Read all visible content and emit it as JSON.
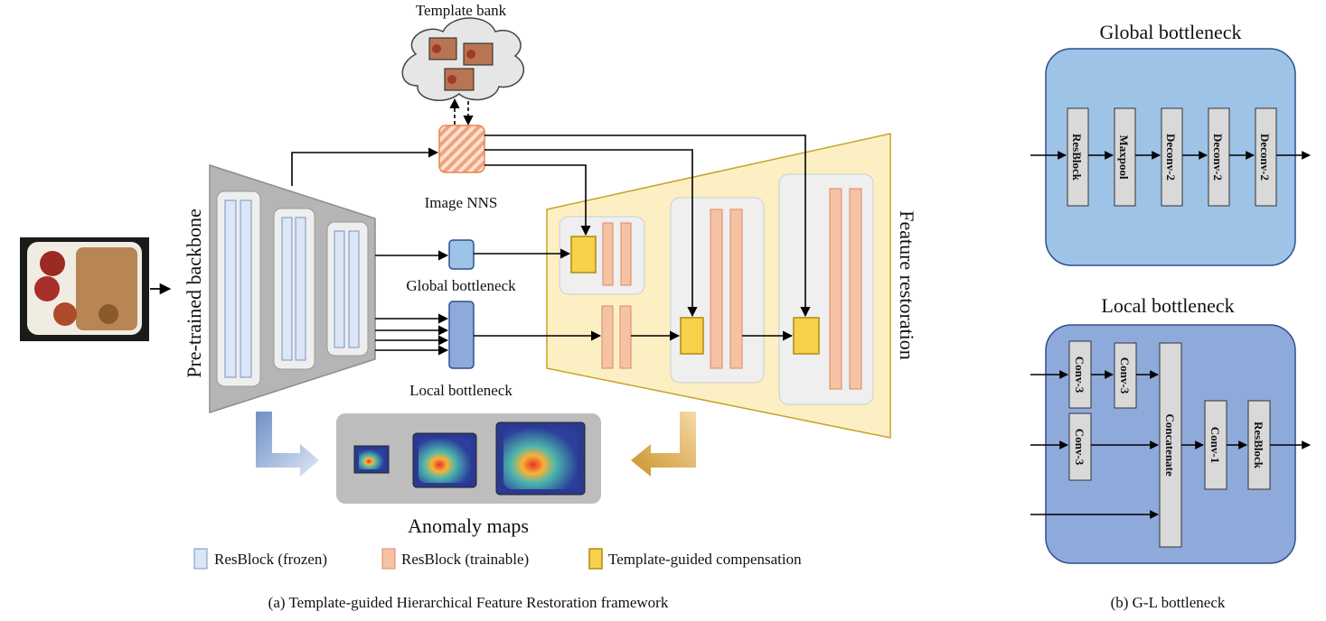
{
  "panel_a": {
    "template_bank": "Template bank",
    "image_nns": "Image NNS",
    "backbone": "Pre-trained backbone",
    "global_bottleneck": "Global bottleneck",
    "local_bottleneck": "Local bottleneck",
    "feature_restoration": "Feature restoration",
    "anomaly_maps": "Anomaly maps",
    "caption": "(a) Template-guided Hierarchical Feature Restoration framework",
    "legend": {
      "frozen": "ResBlock (frozen)",
      "trainable": "ResBlock (trainable)",
      "compensation": "Template-guided compensation"
    }
  },
  "panel_b": {
    "global_title": "Global bottleneck",
    "global_blocks": [
      "ResBlock",
      "Maxpool",
      "Deconv-2",
      "Deconv-2",
      "Deconv-2"
    ],
    "local_title": "Local bottleneck",
    "local_blocks": {
      "conv_a": "Conv-3",
      "conv_b": "Conv-3",
      "conv_c": "Conv-3",
      "concat": "Concatenate",
      "conv1": "Conv-1",
      "resblock": "ResBlock"
    },
    "caption": "(b) G-L bottleneck"
  },
  "colors": {
    "frozen": "#dbe6f6",
    "trainable": "#f6c2a4",
    "compensation": "#f6d24a",
    "restoration_bg": "#fcefc4",
    "global_bg": "#9dc3e6",
    "local_bg": "#8eaadb"
  }
}
